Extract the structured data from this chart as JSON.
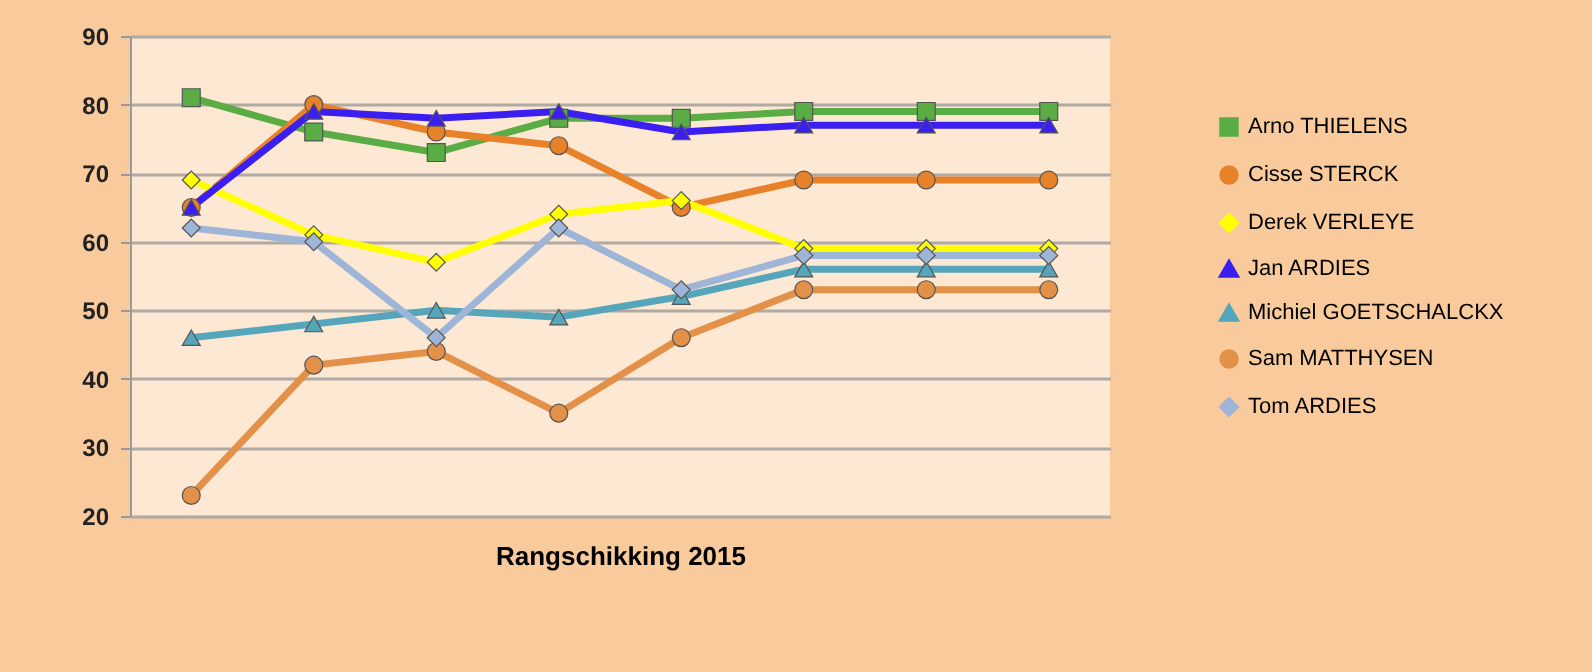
{
  "chart_data": {
    "type": "line",
    "xlabel": "Rangschikking 2015",
    "categories": [
      null,
      null,
      null,
      null,
      null,
      null,
      null,
      null
    ],
    "ylim": [
      20,
      90
    ],
    "yticks": [
      20,
      30,
      40,
      50,
      60,
      70,
      80,
      90
    ],
    "grid": "y",
    "legend": "right",
    "tick_labels": "y",
    "series": [
      {
        "name": "Arno THIELENS",
        "color": "#5aac44",
        "marker": "square",
        "values": [
          81,
          76,
          73,
          78,
          78,
          79,
          79,
          79
        ]
      },
      {
        "name": "Cisse STERCK",
        "color": "#e8822a",
        "marker": "circle",
        "values": [
          65,
          80,
          76,
          74,
          65,
          69,
          69,
          69
        ]
      },
      {
        "name": "Derek VERLEYE",
        "color": "#ffff00",
        "marker": "diamond",
        "values": [
          69,
          61,
          57,
          64,
          66,
          59,
          59,
          59
        ]
      },
      {
        "name": "Jan ARDIES",
        "color": "#3b1ef0",
        "marker": "triangle",
        "values": [
          65,
          79,
          78,
          79,
          76,
          77,
          77,
          77
        ]
      },
      {
        "name": "Michiel GOETSCHALCKX",
        "color": "#56a6bb",
        "marker": "triangle",
        "values": [
          46,
          48,
          50,
          49,
          52,
          56,
          56,
          56
        ]
      },
      {
        "name": "Sam MATTHYSEN",
        "color": "#e39149",
        "marker": "circle",
        "values": [
          23,
          42,
          44,
          35,
          46,
          53,
          53,
          53
        ]
      },
      {
        "name": "Tom ARDIES",
        "color": "#9fb5d8",
        "marker": "diamond",
        "values": [
          62,
          60,
          46,
          62,
          53,
          58,
          58,
          58
        ]
      }
    ]
  }
}
